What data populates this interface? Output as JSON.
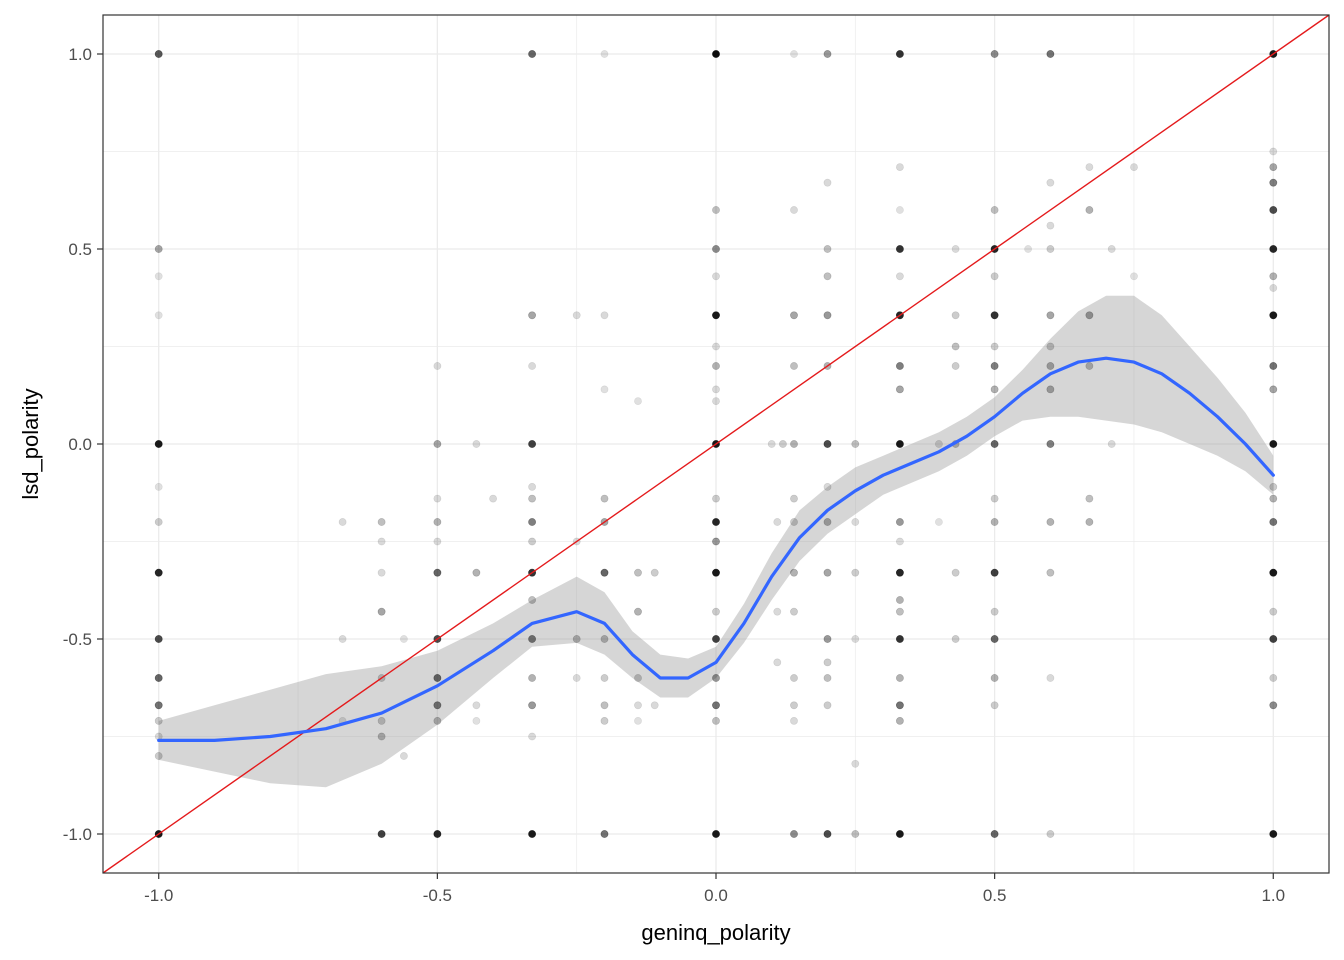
{
  "chart_data": {
    "type": "scatter",
    "title": "",
    "xlabel": "geninq_polarity",
    "ylabel": "lsd_polarity",
    "xlim": [
      -1.1,
      1.1
    ],
    "ylim": [
      -1.1,
      1.1
    ],
    "x_ticks": [
      -1.0,
      -0.5,
      0.0,
      0.5,
      1.0
    ],
    "x_tick_labels": [
      "-1.0",
      "-0.5",
      "0.0",
      "0.5",
      "1.0"
    ],
    "y_ticks": [
      -1.0,
      -0.5,
      0.0,
      0.5,
      1.0
    ],
    "y_tick_labels": [
      "-1.0",
      "-0.5",
      "0.0",
      "0.5",
      "1.0"
    ],
    "grid": true,
    "legend": "none",
    "colors": {
      "points": "#000000",
      "smooth_line": "#3366FF",
      "confidence_band": "#999999",
      "reference_line": "#E41A1C",
      "grid": "#ebebeb",
      "panel_border": "#333333"
    },
    "points": [
      {
        "x": -1.0,
        "y": 1.0,
        "a": 0.65
      },
      {
        "x": -1.0,
        "y": 0.5,
        "a": 0.35
      },
      {
        "x": -1.0,
        "y": 0.43,
        "a": 0.12
      },
      {
        "x": -1.0,
        "y": 0.33,
        "a": 0.12
      },
      {
        "x": -1.0,
        "y": 0.0,
        "a": 0.9
      },
      {
        "x": -1.0,
        "y": -0.11,
        "a": 0.12
      },
      {
        "x": -1.0,
        "y": -0.2,
        "a": 0.2
      },
      {
        "x": -1.0,
        "y": -0.33,
        "a": 0.85
      },
      {
        "x": -1.0,
        "y": -0.5,
        "a": 0.7
      },
      {
        "x": -1.0,
        "y": -0.6,
        "a": 0.6
      },
      {
        "x": -1.0,
        "y": -0.67,
        "a": 0.55
      },
      {
        "x": -1.0,
        "y": -0.71,
        "a": 0.2
      },
      {
        "x": -1.0,
        "y": -0.75,
        "a": 0.15
      },
      {
        "x": -1.0,
        "y": -0.8,
        "a": 0.2
      },
      {
        "x": -1.0,
        "y": -1.0,
        "a": 0.9
      },
      {
        "x": -0.67,
        "y": -0.2,
        "a": 0.15
      },
      {
        "x": -0.67,
        "y": -0.5,
        "a": 0.15
      },
      {
        "x": -0.67,
        "y": -0.71,
        "a": 0.12
      },
      {
        "x": -0.6,
        "y": -0.2,
        "a": 0.25
      },
      {
        "x": -0.6,
        "y": -0.25,
        "a": 0.15
      },
      {
        "x": -0.6,
        "y": -0.33,
        "a": 0.15
      },
      {
        "x": -0.6,
        "y": -0.43,
        "a": 0.35
      },
      {
        "x": -0.6,
        "y": -0.6,
        "a": 0.2
      },
      {
        "x": -0.6,
        "y": -0.71,
        "a": 0.2
      },
      {
        "x": -0.6,
        "y": -0.75,
        "a": 0.25
      },
      {
        "x": -0.6,
        "y": -1.0,
        "a": 0.75
      },
      {
        "x": -0.56,
        "y": -0.8,
        "a": 0.15
      },
      {
        "x": -0.56,
        "y": -0.5,
        "a": 0.12
      },
      {
        "x": -0.5,
        "y": 0.2,
        "a": 0.15
      },
      {
        "x": -0.5,
        "y": 0.0,
        "a": 0.35
      },
      {
        "x": -0.5,
        "y": -0.14,
        "a": 0.15
      },
      {
        "x": -0.5,
        "y": -0.2,
        "a": 0.3
      },
      {
        "x": -0.5,
        "y": -0.25,
        "a": 0.15
      },
      {
        "x": -0.5,
        "y": -0.33,
        "a": 0.6
      },
      {
        "x": -0.5,
        "y": -0.5,
        "a": 0.7
      },
      {
        "x": -0.5,
        "y": -0.6,
        "a": 0.55
      },
      {
        "x": -0.5,
        "y": -0.67,
        "a": 0.5
      },
      {
        "x": -0.5,
        "y": -0.71,
        "a": 0.25
      },
      {
        "x": -0.5,
        "y": -1.0,
        "a": 0.85
      },
      {
        "x": -0.43,
        "y": 0.0,
        "a": 0.15
      },
      {
        "x": -0.43,
        "y": -0.33,
        "a": 0.3
      },
      {
        "x": -0.43,
        "y": -0.67,
        "a": 0.15
      },
      {
        "x": -0.43,
        "y": -0.71,
        "a": 0.12
      },
      {
        "x": -0.4,
        "y": -0.14,
        "a": 0.15
      },
      {
        "x": -0.33,
        "y": 1.0,
        "a": 0.6
      },
      {
        "x": -0.33,
        "y": 0.33,
        "a": 0.35
      },
      {
        "x": -0.33,
        "y": 0.2,
        "a": 0.15
      },
      {
        "x": -0.33,
        "y": 0.0,
        "a": 0.75
      },
      {
        "x": -0.33,
        "y": -0.11,
        "a": 0.15
      },
      {
        "x": -0.33,
        "y": -0.14,
        "a": 0.25
      },
      {
        "x": -0.33,
        "y": -0.2,
        "a": 0.5
      },
      {
        "x": -0.33,
        "y": -0.25,
        "a": 0.2
      },
      {
        "x": -0.33,
        "y": -0.33,
        "a": 0.8
      },
      {
        "x": -0.33,
        "y": -0.4,
        "a": 0.25
      },
      {
        "x": -0.33,
        "y": -0.5,
        "a": 0.5
      },
      {
        "x": -0.33,
        "y": -0.6,
        "a": 0.3
      },
      {
        "x": -0.33,
        "y": -0.67,
        "a": 0.4
      },
      {
        "x": -0.33,
        "y": -0.75,
        "a": 0.15
      },
      {
        "x": -0.33,
        "y": -1.0,
        "a": 0.9
      },
      {
        "x": -0.25,
        "y": 0.33,
        "a": 0.15
      },
      {
        "x": -0.25,
        "y": -0.25,
        "a": 0.15
      },
      {
        "x": -0.25,
        "y": -0.5,
        "a": 0.25
      },
      {
        "x": -0.25,
        "y": -0.6,
        "a": 0.15
      },
      {
        "x": -0.2,
        "y": 1.0,
        "a": 0.12
      },
      {
        "x": -0.2,
        "y": 0.33,
        "a": 0.15
      },
      {
        "x": -0.2,
        "y": 0.14,
        "a": 0.12
      },
      {
        "x": -0.2,
        "y": -0.14,
        "a": 0.25
      },
      {
        "x": -0.2,
        "y": -0.2,
        "a": 0.35
      },
      {
        "x": -0.2,
        "y": -0.33,
        "a": 0.6
      },
      {
        "x": -0.2,
        "y": -0.5,
        "a": 0.25
      },
      {
        "x": -0.2,
        "y": -0.6,
        "a": 0.2
      },
      {
        "x": -0.2,
        "y": -0.67,
        "a": 0.25
      },
      {
        "x": -0.2,
        "y": -0.71,
        "a": 0.2
      },
      {
        "x": -0.2,
        "y": -1.0,
        "a": 0.55
      },
      {
        "x": -0.14,
        "y": 0.11,
        "a": 0.12
      },
      {
        "x": -0.14,
        "y": -0.33,
        "a": 0.25
      },
      {
        "x": -0.14,
        "y": -0.43,
        "a": 0.3
      },
      {
        "x": -0.14,
        "y": -0.6,
        "a": 0.2
      },
      {
        "x": -0.14,
        "y": -0.67,
        "a": 0.15
      },
      {
        "x": -0.14,
        "y": -0.71,
        "a": 0.12
      },
      {
        "x": -0.11,
        "y": -0.33,
        "a": 0.2
      },
      {
        "x": -0.11,
        "y": -0.67,
        "a": 0.15
      },
      {
        "x": 0.0,
        "y": 1.0,
        "a": 0.95
      },
      {
        "x": 0.0,
        "y": 0.6,
        "a": 0.25
      },
      {
        "x": 0.0,
        "y": 0.5,
        "a": 0.45
      },
      {
        "x": 0.0,
        "y": 0.43,
        "a": 0.15
      },
      {
        "x": 0.0,
        "y": 0.33,
        "a": 0.9
      },
      {
        "x": 0.0,
        "y": 0.25,
        "a": 0.15
      },
      {
        "x": 0.0,
        "y": 0.2,
        "a": 0.3
      },
      {
        "x": 0.0,
        "y": 0.14,
        "a": 0.15
      },
      {
        "x": 0.0,
        "y": 0.11,
        "a": 0.15
      },
      {
        "x": 0.0,
        "y": 0.0,
        "a": 0.9
      },
      {
        "x": 0.0,
        "y": -0.14,
        "a": 0.2
      },
      {
        "x": 0.0,
        "y": -0.2,
        "a": 0.85
      },
      {
        "x": 0.0,
        "y": -0.25,
        "a": 0.4
      },
      {
        "x": 0.0,
        "y": -0.33,
        "a": 0.9
      },
      {
        "x": 0.0,
        "y": -0.43,
        "a": 0.2
      },
      {
        "x": 0.0,
        "y": -0.5,
        "a": 0.75
      },
      {
        "x": 0.0,
        "y": -0.6,
        "a": 0.4
      },
      {
        "x": 0.0,
        "y": -0.67,
        "a": 0.55
      },
      {
        "x": 0.0,
        "y": -0.71,
        "a": 0.25
      },
      {
        "x": 0.0,
        "y": -1.0,
        "a": 0.9
      },
      {
        "x": 0.11,
        "y": -0.2,
        "a": 0.15
      },
      {
        "x": 0.11,
        "y": -0.43,
        "a": 0.15
      },
      {
        "x": 0.11,
        "y": -0.56,
        "a": 0.15
      },
      {
        "x": 0.1,
        "y": 0.0,
        "a": 0.15
      },
      {
        "x": 0.14,
        "y": 1.0,
        "a": 0.12
      },
      {
        "x": 0.14,
        "y": 0.6,
        "a": 0.15
      },
      {
        "x": 0.14,
        "y": 0.33,
        "a": 0.35
      },
      {
        "x": 0.14,
        "y": 0.2,
        "a": 0.25
      },
      {
        "x": 0.14,
        "y": 0.0,
        "a": 0.3
      },
      {
        "x": 0.14,
        "y": -0.14,
        "a": 0.2
      },
      {
        "x": 0.14,
        "y": -0.2,
        "a": 0.2
      },
      {
        "x": 0.14,
        "y": -0.33,
        "a": 0.3
      },
      {
        "x": 0.14,
        "y": -0.43,
        "a": 0.2
      },
      {
        "x": 0.14,
        "y": -0.6,
        "a": 0.2
      },
      {
        "x": 0.14,
        "y": -0.67,
        "a": 0.2
      },
      {
        "x": 0.14,
        "y": -0.71,
        "a": 0.15
      },
      {
        "x": 0.14,
        "y": -1.0,
        "a": 0.45
      },
      {
        "x": 0.12,
        "y": 0.0,
        "a": 0.2
      },
      {
        "x": 0.2,
        "y": 1.0,
        "a": 0.4
      },
      {
        "x": 0.2,
        "y": 0.67,
        "a": 0.15
      },
      {
        "x": 0.2,
        "y": 0.5,
        "a": 0.25
      },
      {
        "x": 0.2,
        "y": 0.43,
        "a": 0.25
      },
      {
        "x": 0.2,
        "y": 0.33,
        "a": 0.4
      },
      {
        "x": 0.2,
        "y": 0.2,
        "a": 0.3
      },
      {
        "x": 0.2,
        "y": 0.0,
        "a": 0.7
      },
      {
        "x": 0.2,
        "y": -0.11,
        "a": 0.15
      },
      {
        "x": 0.2,
        "y": -0.2,
        "a": 0.3
      },
      {
        "x": 0.2,
        "y": -0.33,
        "a": 0.35
      },
      {
        "x": 0.2,
        "y": -0.5,
        "a": 0.4
      },
      {
        "x": 0.2,
        "y": -0.56,
        "a": 0.2
      },
      {
        "x": 0.2,
        "y": -0.6,
        "a": 0.25
      },
      {
        "x": 0.2,
        "y": -0.67,
        "a": 0.2
      },
      {
        "x": 0.2,
        "y": -1.0,
        "a": 0.7
      },
      {
        "x": 0.25,
        "y": 0.0,
        "a": 0.25
      },
      {
        "x": 0.25,
        "y": -0.33,
        "a": 0.2
      },
      {
        "x": 0.25,
        "y": -0.5,
        "a": 0.15
      },
      {
        "x": 0.25,
        "y": -0.82,
        "a": 0.15
      },
      {
        "x": 0.25,
        "y": -1.0,
        "a": 0.25
      },
      {
        "x": 0.25,
        "y": -0.2,
        "a": 0.15
      },
      {
        "x": 0.33,
        "y": 1.0,
        "a": 0.8
      },
      {
        "x": 0.33,
        "y": 0.71,
        "a": 0.15
      },
      {
        "x": 0.33,
        "y": 0.6,
        "a": 0.12
      },
      {
        "x": 0.33,
        "y": 0.5,
        "a": 0.8
      },
      {
        "x": 0.33,
        "y": 0.43,
        "a": 0.15
      },
      {
        "x": 0.33,
        "y": 0.33,
        "a": 0.85
      },
      {
        "x": 0.33,
        "y": 0.2,
        "a": 0.5
      },
      {
        "x": 0.33,
        "y": 0.14,
        "a": 0.35
      },
      {
        "x": 0.33,
        "y": 0.0,
        "a": 0.9
      },
      {
        "x": 0.33,
        "y": -0.2,
        "a": 0.4
      },
      {
        "x": 0.33,
        "y": -0.25,
        "a": 0.15
      },
      {
        "x": 0.33,
        "y": -0.33,
        "a": 0.85
      },
      {
        "x": 0.33,
        "y": -0.4,
        "a": 0.3
      },
      {
        "x": 0.33,
        "y": -0.43,
        "a": 0.25
      },
      {
        "x": 0.33,
        "y": -0.5,
        "a": 0.8
      },
      {
        "x": 0.33,
        "y": -0.6,
        "a": 0.3
      },
      {
        "x": 0.33,
        "y": -0.67,
        "a": 0.55
      },
      {
        "x": 0.33,
        "y": -0.71,
        "a": 0.3
      },
      {
        "x": 0.33,
        "y": -1.0,
        "a": 0.9
      },
      {
        "x": 0.4,
        "y": 0.0,
        "a": 0.15
      },
      {
        "x": 0.4,
        "y": -0.2,
        "a": 0.12
      },
      {
        "x": 0.43,
        "y": 0.5,
        "a": 0.15
      },
      {
        "x": 0.43,
        "y": 0.33,
        "a": 0.2
      },
      {
        "x": 0.43,
        "y": 0.25,
        "a": 0.25
      },
      {
        "x": 0.43,
        "y": 0.2,
        "a": 0.2
      },
      {
        "x": 0.43,
        "y": 0.0,
        "a": 0.25
      },
      {
        "x": 0.43,
        "y": -0.33,
        "a": 0.2
      },
      {
        "x": 0.43,
        "y": -0.5,
        "a": 0.2
      },
      {
        "x": 0.5,
        "y": 1.0,
        "a": 0.45
      },
      {
        "x": 0.5,
        "y": 0.6,
        "a": 0.25
      },
      {
        "x": 0.5,
        "y": 0.5,
        "a": 0.85
      },
      {
        "x": 0.5,
        "y": 0.43,
        "a": 0.2
      },
      {
        "x": 0.5,
        "y": 0.33,
        "a": 0.8
      },
      {
        "x": 0.5,
        "y": 0.25,
        "a": 0.2
      },
      {
        "x": 0.5,
        "y": 0.2,
        "a": 0.5
      },
      {
        "x": 0.5,
        "y": 0.14,
        "a": 0.3
      },
      {
        "x": 0.5,
        "y": 0.0,
        "a": 0.6
      },
      {
        "x": 0.5,
        "y": -0.14,
        "a": 0.2
      },
      {
        "x": 0.5,
        "y": -0.2,
        "a": 0.3
      },
      {
        "x": 0.5,
        "y": -0.33,
        "a": 0.75
      },
      {
        "x": 0.5,
        "y": -0.43,
        "a": 0.2
      },
      {
        "x": 0.5,
        "y": -0.5,
        "a": 0.6
      },
      {
        "x": 0.5,
        "y": -0.6,
        "a": 0.3
      },
      {
        "x": 0.5,
        "y": -0.67,
        "a": 0.2
      },
      {
        "x": 0.5,
        "y": -1.0,
        "a": 0.6
      },
      {
        "x": 0.56,
        "y": 0.5,
        "a": 0.12
      },
      {
        "x": 0.6,
        "y": 1.0,
        "a": 0.55
      },
      {
        "x": 0.6,
        "y": 0.67,
        "a": 0.15
      },
      {
        "x": 0.6,
        "y": 0.56,
        "a": 0.15
      },
      {
        "x": 0.6,
        "y": 0.5,
        "a": 0.2
      },
      {
        "x": 0.6,
        "y": 0.33,
        "a": 0.35
      },
      {
        "x": 0.6,
        "y": 0.25,
        "a": 0.2
      },
      {
        "x": 0.6,
        "y": 0.2,
        "a": 0.3
      },
      {
        "x": 0.6,
        "y": 0.14,
        "a": 0.3
      },
      {
        "x": 0.6,
        "y": 0.0,
        "a": 0.5
      },
      {
        "x": 0.6,
        "y": -0.2,
        "a": 0.3
      },
      {
        "x": 0.6,
        "y": -0.33,
        "a": 0.25
      },
      {
        "x": 0.6,
        "y": -0.6,
        "a": 0.15
      },
      {
        "x": 0.6,
        "y": -1.0,
        "a": 0.2
      },
      {
        "x": 0.67,
        "y": 0.71,
        "a": 0.15
      },
      {
        "x": 0.67,
        "y": 0.6,
        "a": 0.3
      },
      {
        "x": 0.67,
        "y": 0.33,
        "a": 0.35
      },
      {
        "x": 0.67,
        "y": 0.2,
        "a": 0.25
      },
      {
        "x": 0.67,
        "y": -0.14,
        "a": 0.25
      },
      {
        "x": 0.67,
        "y": -0.2,
        "a": 0.3
      },
      {
        "x": 0.71,
        "y": 0.5,
        "a": 0.15
      },
      {
        "x": 0.71,
        "y": 0.0,
        "a": 0.15
      },
      {
        "x": 0.75,
        "y": 0.71,
        "a": 0.15
      },
      {
        "x": 0.75,
        "y": 0.43,
        "a": 0.12
      },
      {
        "x": 1.0,
        "y": 1.0,
        "a": 0.9
      },
      {
        "x": 1.0,
        "y": 0.75,
        "a": 0.15
      },
      {
        "x": 1.0,
        "y": 0.71,
        "a": 0.35
      },
      {
        "x": 1.0,
        "y": 0.67,
        "a": 0.5
      },
      {
        "x": 1.0,
        "y": 0.6,
        "a": 0.7
      },
      {
        "x": 1.0,
        "y": 0.5,
        "a": 0.85
      },
      {
        "x": 1.0,
        "y": 0.43,
        "a": 0.3
      },
      {
        "x": 1.0,
        "y": 0.4,
        "a": 0.15
      },
      {
        "x": 1.0,
        "y": 0.33,
        "a": 0.9
      },
      {
        "x": 1.0,
        "y": 0.2,
        "a": 0.55
      },
      {
        "x": 1.0,
        "y": 0.14,
        "a": 0.35
      },
      {
        "x": 1.0,
        "y": 0.0,
        "a": 0.9
      },
      {
        "x": 1.0,
        "y": -0.11,
        "a": 0.2
      },
      {
        "x": 1.0,
        "y": -0.14,
        "a": 0.3
      },
      {
        "x": 1.0,
        "y": -0.2,
        "a": 0.55
      },
      {
        "x": 1.0,
        "y": -0.33,
        "a": 0.9
      },
      {
        "x": 1.0,
        "y": -0.43,
        "a": 0.2
      },
      {
        "x": 1.0,
        "y": -0.5,
        "a": 0.75
      },
      {
        "x": 1.0,
        "y": -0.6,
        "a": 0.2
      },
      {
        "x": 1.0,
        "y": -0.67,
        "a": 0.45
      },
      {
        "x": 1.0,
        "y": -1.0,
        "a": 0.9
      }
    ],
    "smooth_line": {
      "x": [
        -1.0,
        -0.9,
        -0.8,
        -0.7,
        -0.6,
        -0.5,
        -0.4,
        -0.33,
        -0.25,
        -0.2,
        -0.15,
        -0.1,
        -0.05,
        0.0,
        0.05,
        0.1,
        0.15,
        0.2,
        0.25,
        0.3,
        0.35,
        0.4,
        0.45,
        0.5,
        0.55,
        0.6,
        0.65,
        0.7,
        0.75,
        0.8,
        0.85,
        0.9,
        0.95,
        1.0
      ],
      "y": [
        -0.76,
        -0.76,
        -0.75,
        -0.73,
        -0.69,
        -0.62,
        -0.53,
        -0.46,
        -0.43,
        -0.46,
        -0.54,
        -0.6,
        -0.6,
        -0.56,
        -0.46,
        -0.34,
        -0.24,
        -0.17,
        -0.12,
        -0.08,
        -0.05,
        -0.02,
        0.02,
        0.07,
        0.13,
        0.18,
        0.21,
        0.22,
        0.21,
        0.18,
        0.13,
        0.07,
        0.0,
        -0.08
      ]
    },
    "confidence_band": {
      "upper": [
        -0.71,
        -0.67,
        -0.63,
        -0.59,
        -0.57,
        -0.53,
        -0.46,
        -0.4,
        -0.34,
        -0.38,
        -0.48,
        -0.54,
        -0.55,
        -0.52,
        -0.41,
        -0.28,
        -0.17,
        -0.11,
        -0.06,
        -0.03,
        0.0,
        0.03,
        0.07,
        0.12,
        0.19,
        0.27,
        0.34,
        0.38,
        0.38,
        0.33,
        0.25,
        0.17,
        0.08,
        -0.03
      ],
      "lower": [
        -0.81,
        -0.84,
        -0.87,
        -0.88,
        -0.82,
        -0.72,
        -0.6,
        -0.52,
        -0.51,
        -0.54,
        -0.6,
        -0.65,
        -0.65,
        -0.6,
        -0.51,
        -0.4,
        -0.3,
        -0.23,
        -0.18,
        -0.13,
        -0.1,
        -0.07,
        -0.03,
        0.02,
        0.06,
        0.07,
        0.07,
        0.06,
        0.05,
        0.03,
        0.0,
        -0.03,
        -0.07,
        -0.13
      ]
    },
    "reference_line": {
      "slope": 1,
      "intercept": 0
    }
  }
}
